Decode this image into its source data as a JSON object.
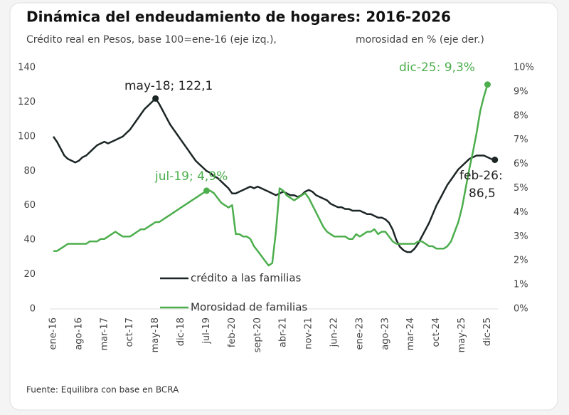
{
  "chart_data": {
    "type": "line",
    "title": "Dinámica del endeudamiento  de hogares: 2016-2026",
    "subtitle": "Crédito real en Pesos, base 100=ene-16 (eje izq.),",
    "subtitle_right": "morosidad en % (eje der.)",
    "source": "Fuente: Equilibra con base en BCRA",
    "categories": [
      "ene-16",
      null,
      null,
      null,
      null,
      null,
      null,
      "ago-16",
      null,
      null,
      null,
      null,
      null,
      null,
      "mar-17",
      null,
      null,
      null,
      null,
      null,
      null,
      "oct-17",
      null,
      null,
      null,
      null,
      null,
      null,
      "may-18",
      null,
      null,
      null,
      null,
      null,
      null,
      "dic-18",
      null,
      null,
      null,
      null,
      null,
      null,
      "jul-19",
      null,
      null,
      null,
      null,
      null,
      null,
      "feb-20",
      null,
      null,
      null,
      null,
      null,
      null,
      "sept-20",
      null,
      null,
      null,
      null,
      null,
      null,
      "abr-21",
      null,
      null,
      null,
      null,
      null,
      null,
      "nov-21",
      null,
      null,
      null,
      null,
      null,
      null,
      "jun-22",
      null,
      null,
      null,
      null,
      null,
      null,
      "ene-23",
      null,
      null,
      null,
      null,
      null,
      null,
      "ago-23",
      null,
      null,
      null,
      null,
      null,
      null,
      "mar-24",
      null,
      null,
      null,
      null,
      null,
      null,
      "oct-24",
      null,
      null,
      null,
      null,
      null,
      null,
      "may-25",
      null,
      null,
      null,
      null,
      null,
      null,
      "dic-25",
      null,
      null
    ],
    "series": [
      {
        "name": "crédito a las familias",
        "color": "#1d2626",
        "axis": "y",
        "values": [
          100,
          97,
          93,
          89,
          87,
          86,
          85,
          86,
          88,
          89,
          91,
          93,
          95,
          96,
          97,
          96,
          97,
          98,
          99,
          100,
          102,
          104,
          107,
          110,
          113,
          116,
          118,
          120,
          122.1,
          119,
          115,
          111,
          107,
          104,
          101,
          98,
          95,
          92,
          89,
          86,
          84,
          82,
          80,
          79,
          77,
          76,
          74,
          72,
          70,
          67,
          67,
          68,
          69,
          70,
          71,
          70,
          71,
          70,
          69,
          68,
          67,
          66,
          67,
          68,
          67,
          66,
          66,
          65,
          66,
          68,
          69,
          68,
          66,
          65,
          64,
          63,
          61,
          60,
          59,
          59,
          58,
          58,
          57,
          57,
          57,
          56,
          55,
          55,
          54,
          53,
          53,
          52,
          50,
          46,
          40,
          36,
          34,
          33,
          33,
          35,
          38,
          42,
          46,
          50,
          55,
          60,
          64,
          68,
          72,
          75,
          78,
          81,
          83,
          85,
          87,
          88,
          89,
          89,
          89,
          88,
          87,
          86.5
        ]
      },
      {
        "name": "Morosidad de familias",
        "color": "#4cae4c",
        "axis": "y2",
        "values": [
          2.4,
          2.4,
          2.5,
          2.6,
          2.7,
          2.7,
          2.7,
          2.7,
          2.7,
          2.7,
          2.8,
          2.8,
          2.8,
          2.9,
          2.9,
          3.0,
          3.1,
          3.2,
          3.1,
          3.0,
          3.0,
          3.0,
          3.1,
          3.2,
          3.3,
          3.3,
          3.4,
          3.5,
          3.6,
          3.6,
          3.7,
          3.8,
          3.9,
          4.0,
          4.1,
          4.2,
          4.3,
          4.4,
          4.5,
          4.6,
          4.7,
          4.8,
          4.9,
          4.9,
          4.8,
          4.6,
          4.4,
          4.3,
          4.2,
          4.3,
          3.1,
          3.1,
          3.0,
          3.0,
          2.9,
          2.6,
          2.4,
          2.2,
          2.0,
          1.8,
          1.9,
          3.2,
          5.0,
          4.9,
          4.7,
          4.6,
          4.5,
          4.6,
          4.7,
          4.8,
          4.6,
          4.3,
          4.0,
          3.7,
          3.4,
          3.2,
          3.1,
          3.0,
          3.0,
          3.0,
          3.0,
          2.9,
          2.9,
          3.1,
          3.0,
          3.1,
          3.2,
          3.2,
          3.3,
          3.1,
          3.2,
          3.2,
          3.0,
          2.8,
          2.7,
          2.7,
          2.7,
          2.7,
          2.7,
          2.7,
          2.8,
          2.8,
          2.7,
          2.6,
          2.6,
          2.5,
          2.5,
          2.5,
          2.6,
          2.8,
          3.2,
          3.6,
          4.2,
          5.0,
          5.8,
          6.5,
          7.3,
          8.2,
          8.8,
          9.3,
          null,
          null
        ]
      }
    ],
    "ylim": [
      0,
      140
    ],
    "yticks": [
      0,
      20,
      40,
      60,
      80,
      100,
      120,
      140
    ],
    "y2lim": [
      0,
      10
    ],
    "y2ticks": [
      {
        "value": 0,
        "label": "0%"
      },
      {
        "value": 1,
        "label": "1%"
      },
      {
        "value": 2,
        "label": "2%"
      },
      {
        "value": 3,
        "label": "3%"
      },
      {
        "value": 4,
        "label": "4%"
      },
      {
        "value": 5,
        "label": "5%"
      },
      {
        "value": 6,
        "label": "6%"
      },
      {
        "value": 7,
        "label": "7%"
      },
      {
        "value": 8,
        "label": "8%"
      },
      {
        "value": 9,
        "label": "9%"
      },
      {
        "value": 10,
        "label": "10%"
      }
    ],
    "grid": false,
    "annotations": [
      {
        "text": "may-18; 122,1"
      },
      {
        "text": "jul-19; 4,9%"
      },
      {
        "text": "dic-25: 9,3%"
      },
      {
        "text": "feb-26:"
      },
      {
        "text": "86,5"
      }
    ]
  }
}
